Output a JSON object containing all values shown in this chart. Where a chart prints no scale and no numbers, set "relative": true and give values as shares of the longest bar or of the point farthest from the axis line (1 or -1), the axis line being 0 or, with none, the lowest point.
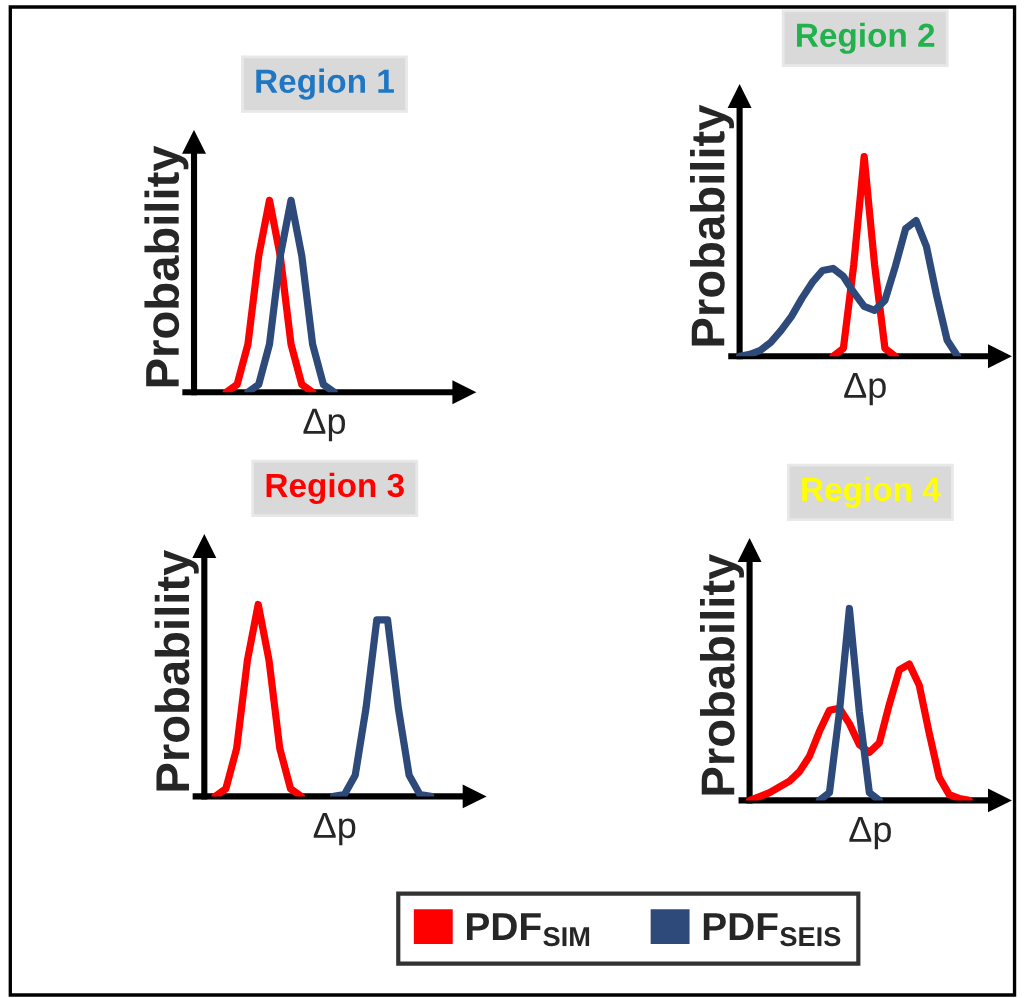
{
  "chart_data": [
    {
      "type": "line",
      "relative": true,
      "title": "Region 1",
      "xlabel": "Δp",
      "ylabel": "Probability",
      "legend": "bottom",
      "categories": [
        null,
        null,
        null,
        null,
        null,
        null,
        null,
        null,
        null,
        null,
        null,
        null,
        null,
        null,
        null,
        null,
        null,
        null,
        null,
        null,
        null,
        null,
        null,
        null,
        null
      ],
      "series": [
        {
          "name": "PDF$_{SIM}$",
          "color": "#ff0000",
          "values": [
            null,
            null,
            null,
            0,
            0.04,
            0.25,
            0.71,
            1,
            0.71,
            0.25,
            0.04,
            0,
            null,
            null,
            null,
            null,
            null,
            null,
            null,
            null,
            null,
            null,
            null,
            null,
            null
          ]
        },
        {
          "name": "PDF$_{SEIS}$",
          "color": "#2e4a7a",
          "values": [
            null,
            null,
            null,
            null,
            null,
            0,
            0.04,
            0.25,
            0.71,
            1,
            0.71,
            0.25,
            0.04,
            0,
            null,
            null,
            null,
            null,
            null,
            null,
            null,
            null,
            null,
            null,
            null
          ]
        }
      ]
    },
    {
      "type": "line",
      "relative": true,
      "title": "Region 2",
      "xlabel": "Δp",
      "ylabel": "Probability",
      "categories": [
        null,
        null,
        null,
        null,
        null,
        null,
        null,
        null,
        null,
        null,
        null,
        null,
        null,
        null,
        null,
        null,
        null,
        null,
        null,
        null,
        null,
        null,
        null,
        null,
        null
      ],
      "series": [
        {
          "color": "#ff0000",
          "values": [
            null,
            null,
            null,
            null,
            null,
            null,
            null,
            null,
            null,
            0,
            0.04,
            0.46,
            1,
            0.46,
            0.04,
            0,
            null,
            null,
            null,
            null,
            null,
            null,
            null,
            null,
            null
          ]
        },
        {
          "color": "#2e4a7a",
          "values": [
            0,
            0.01,
            0.03,
            0.07,
            0.13,
            0.2,
            0.29,
            0.37,
            0.43,
            0.44,
            0.4,
            0.32,
            0.25,
            0.23,
            0.28,
            0.45,
            0.64,
            0.68,
            0.55,
            0.3,
            0.08,
            0,
            null,
            null,
            null
          ]
        }
      ]
    },
    {
      "type": "line",
      "relative": true,
      "title": "Region 3",
      "xlabel": "Δp",
      "ylabel": "Probability",
      "categories": [
        null,
        null,
        null,
        null,
        null,
        null,
        null,
        null,
        null,
        null,
        null,
        null,
        null,
        null,
        null,
        null,
        null,
        null,
        null,
        null,
        null,
        null,
        null,
        null,
        null
      ],
      "series": [
        {
          "color": "#ff0000",
          "values": [
            null,
            0,
            0.04,
            0.25,
            0.71,
            1,
            0.71,
            0.25,
            0.04,
            0,
            null,
            null,
            null,
            null,
            null,
            null,
            null,
            null,
            null,
            null,
            null,
            null,
            null,
            null,
            null
          ]
        },
        {
          "color": "#2e4a7a",
          "values": [
            null,
            null,
            null,
            null,
            null,
            null,
            null,
            null,
            null,
            null,
            null,
            null,
            0,
            0.01,
            0.11,
            0.46,
            0.92,
            0.92,
            0.46,
            0.11,
            0.01,
            0,
            null,
            null,
            null
          ]
        }
      ]
    },
    {
      "type": "line",
      "relative": true,
      "title": "Region 4",
      "xlabel": "Δp",
      "ylabel": "Probability",
      "categories": [
        null,
        null,
        null,
        null,
        null,
        null,
        null,
        null,
        null,
        null,
        null,
        null,
        null,
        null,
        null,
        null,
        null,
        null,
        null,
        null,
        null,
        null,
        null,
        null,
        null
      ],
      "series": [
        {
          "color": "#ff0000",
          "values": [
            0,
            0.02,
            0.04,
            0.07,
            0.1,
            0.15,
            0.23,
            0.36,
            0.47,
            0.48,
            0.4,
            0.29,
            0.25,
            0.3,
            0.5,
            0.68,
            0.71,
            0.6,
            0.35,
            0.12,
            0.03,
            0.01,
            0,
            null,
            null
          ]
        },
        {
          "color": "#2e4a7a",
          "values": [
            null,
            null,
            null,
            null,
            null,
            null,
            null,
            0,
            0.04,
            0.46,
            1,
            0.46,
            0.04,
            0,
            null,
            null,
            null,
            null,
            null,
            null,
            null,
            null,
            null,
            null,
            null
          ]
        }
      ]
    }
  ]
}
